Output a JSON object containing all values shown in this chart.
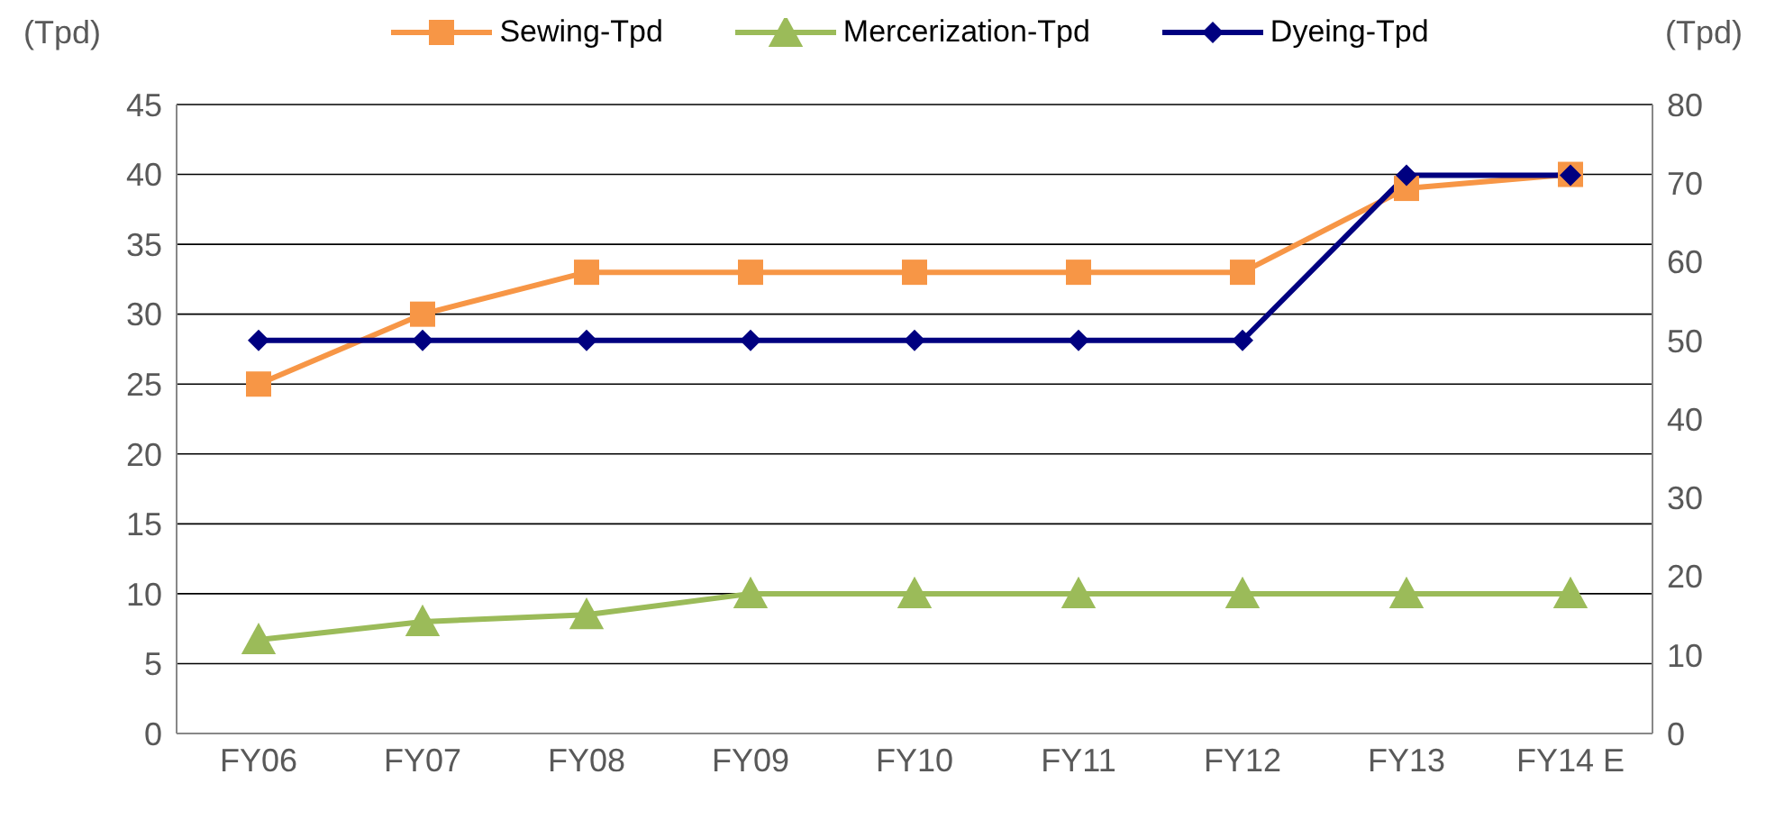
{
  "chart_data": {
    "type": "line",
    "categories": [
      "FY06",
      "FY07",
      "FY08",
      "FY09",
      "FY10",
      "FY11",
      "FY12",
      "FY13",
      "FY14 E"
    ],
    "series": [
      {
        "name": "Sewing-Tpd",
        "color": "#f79646",
        "marker": "square",
        "values": [
          25,
          30,
          33,
          33,
          33,
          33,
          33,
          39,
          40
        ]
      },
      {
        "name": "Mercerization-Tpd",
        "color": "#9bbb59",
        "marker": "triangle",
        "values": [
          6.7,
          8,
          8.5,
          10,
          10,
          10,
          10,
          10,
          10
        ]
      },
      {
        "name": "Dyeing-Tpd",
        "color": "#000080",
        "marker": "diamond",
        "axis": "y2",
        "values": [
          50,
          50,
          50,
          50,
          50,
          50,
          50,
          71,
          71
        ]
      }
    ],
    "ylabel": "(Tpd)",
    "y2label": "(Tpd)",
    "ylim": [
      0,
      45
    ],
    "yticks": [
      0,
      5,
      10,
      15,
      20,
      25,
      30,
      35,
      40,
      45
    ],
    "y2lim": [
      0,
      80
    ],
    "y2ticks": [
      0,
      10,
      20,
      30,
      40,
      50,
      60,
      70,
      80
    ],
    "grid": "y",
    "legend": "top",
    "line_style": "solid"
  }
}
